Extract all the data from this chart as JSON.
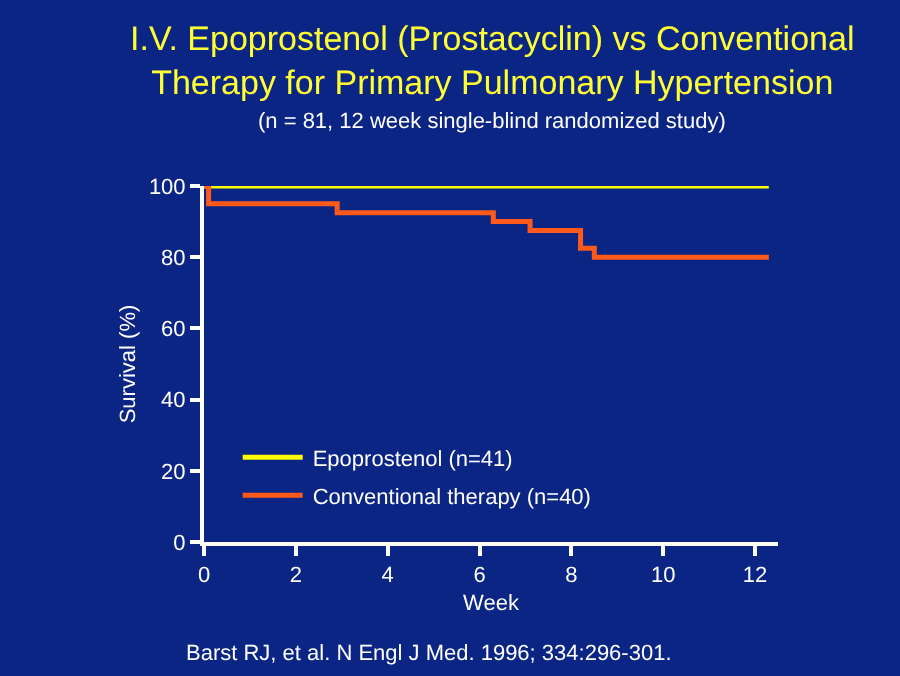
{
  "chart_data": {
    "type": "step",
    "title": "I.V. Epoprostenol (Prostacyclin) vs Conventional\nTherapy for Primary Pulmonary Hypertension",
    "subtitle": "(n = 81, 12 week single-blind randomized study)",
    "xlabel": "Week",
    "ylabel": "Survival (%)",
    "annotations": [
      "Barst RJ, et al. N Engl J Med. 1996; 334:296-301."
    ],
    "series": [
      {
        "name": "Epoprostenol (n=41)",
        "color": "#ffff00",
        "x": [
          0,
          12.3
        ],
        "values": [
          100,
          100
        ]
      },
      {
        "name": "Conventional therapy (n=40)",
        "color": "#ff5a1a",
        "x": [
          0,
          0.1,
          2.9,
          6.3,
          7.1,
          8.2,
          8.5,
          12.3
        ],
        "values": [
          100,
          95,
          92.5,
          90,
          87.5,
          82.5,
          80,
          80
        ]
      }
    ],
    "xlim": [
      0,
      12.5
    ],
    "xticks": [
      0,
      2,
      4,
      6,
      8,
      10,
      12
    ],
    "ylim": [
      0,
      100
    ],
    "yticks": [
      0,
      20,
      40,
      60,
      80,
      100
    ],
    "grid": false,
    "legend": "bottom left"
  }
}
